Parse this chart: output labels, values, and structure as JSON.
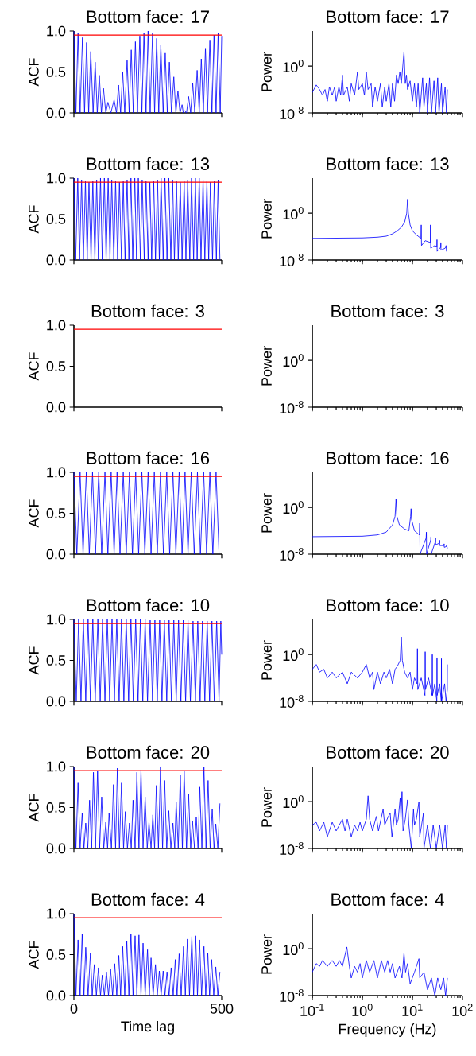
{
  "chart_data": [
    {
      "type": "line",
      "title": "Bottom face: 17",
      "ylabel": "ACF",
      "xlim": [
        0,
        500
      ],
      "ylim": [
        0,
        1
      ],
      "xticks": [
        0,
        500
      ],
      "yticks": [
        {
          "value": 0,
          "label": "0.0"
        },
        {
          "value": 0.5,
          "label": "0.5"
        },
        {
          "value": 1,
          "label": "1.0"
        }
      ],
      "tick_labels": "y",
      "ref_lines": [
        {
          "axis": "y",
          "value": 0.95,
          "color": "#ff0000"
        }
      ],
      "series": [
        {
          "color": "#0000ff",
          "x": [
            0,
            7,
            14,
            21,
            29,
            36,
            43,
            50,
            57,
            65,
            72,
            79,
            86,
            93,
            100,
            108,
            115,
            125,
            136,
            144,
            151,
            158,
            165,
            172,
            180,
            187,
            194,
            201,
            208,
            215,
            223,
            230,
            237,
            244,
            251,
            258,
            266,
            273,
            280,
            287,
            294,
            302,
            309,
            316,
            323,
            330,
            338,
            345,
            352,
            359,
            366,
            370,
            374,
            381,
            388,
            395,
            402,
            409,
            417,
            424,
            431,
            438,
            445,
            452,
            460,
            467,
            474,
            481,
            488,
            495,
            500
          ],
          "values": [
            1.0,
            0,
            0.98,
            0,
            0.92,
            0,
            0.86,
            0,
            0.75,
            0,
            0.62,
            0,
            0.46,
            0,
            0.3,
            0,
            0.13,
            0,
            0.16,
            0,
            0.34,
            0,
            0.5,
            0,
            0.64,
            0,
            0.77,
            0,
            0.87,
            0,
            0.94,
            0,
            0.98,
            0,
            1.0,
            0,
            0.97,
            0,
            0.91,
            0,
            0.83,
            0,
            0.73,
            0,
            0.62,
            0,
            0.44,
            0,
            0.27,
            0,
            0.1,
            0,
            0.03,
            0,
            0.2,
            0,
            0.36,
            0,
            0.52,
            0,
            0.66,
            0,
            0.79,
            0,
            0.89,
            0,
            0.95,
            0,
            0.98,
            0,
            0.94
          ]
        }
      ]
    },
    {
      "type": "line",
      "title": "Bottom face: 17",
      "ylabel": "Power",
      "log": "xy",
      "xlim": [
        0.1,
        100
      ],
      "ylim": [
        1e-08,
        1000000.0
      ],
      "xticks": [
        {
          "value": 0.1,
          "label": null
        },
        {
          "value": 1,
          "label": null
        },
        {
          "value": 10,
          "label": null
        },
        {
          "value": 100,
          "label": null
        }
      ],
      "yticks": [
        {
          "value": 1e-08,
          "label": "10$^{-8}$"
        },
        {
          "value": 1,
          "label": "10$^{0}$"
        }
      ],
      "tick_labels": "y",
      "series": [
        {
          "color": "#0000ff",
          "x": [
            0.1,
            0.12,
            0.14,
            0.16,
            0.18,
            0.2,
            0.22,
            0.25,
            0.28,
            0.3,
            0.34,
            0.37,
            0.4,
            0.42,
            0.5,
            0.55,
            0.6,
            0.7,
            0.8,
            0.85,
            1.0,
            1.1,
            1.2,
            1.3,
            1.5,
            1.6,
            1.8,
            2.0,
            2.3,
            2.5,
            2.8,
            3.0,
            3.4,
            3.7,
            4.0,
            4.4,
            4.8,
            5.2,
            5.6,
            6.0,
            6.8,
            7.2,
            7.6,
            8.0,
            9.0,
            10,
            11,
            12,
            13,
            14,
            16,
            17,
            19,
            20,
            22,
            24,
            27,
            29,
            32,
            34,
            38,
            40,
            45,
            48,
            50
          ],
          "values": [
            3e-05,
            0.0006,
            0.0001,
            1e-05,
            0.0001,
            1e-06,
            0.0003,
            1e-05,
            0.0003,
            1e-06,
            0.0003,
            1e-05,
            0.03,
            1e-05,
            0.0003,
            1e-06,
            0.001,
            1e-05,
            0.1,
            0.0001,
            0.001,
            1e-05,
            0.1,
            0.0001,
            0.001,
            1e-07,
            0.0003,
            1e-06,
            0.001,
            1e-07,
            0.0003,
            1e-06,
            0.001,
            1e-07,
            0.001,
            1e-06,
            0.03,
            0.001,
            0.1,
            0.001,
            300,
            0.001,
            0.03,
            0.0001,
            0.003,
            1e-06,
            0.001,
            1e-07,
            0.001,
            1e-08,
            0.01,
            1e-07,
            0.001,
            1e-08,
            0.01,
            1e-08,
            0.003,
            1e-08,
            0.01,
            1e-08,
            0.001,
            1e-08,
            0.0003,
            1e-08,
            0.0001
          ]
        }
      ]
    },
    {
      "type": "line",
      "title": "Bottom face: 13",
      "ylabel": "ACF",
      "xlim": [
        0,
        500
      ],
      "ylim": [
        0,
        1
      ],
      "xticks": [
        0,
        500
      ],
      "yticks": [
        {
          "value": 0,
          "label": "0.0"
        },
        {
          "value": 0.5,
          "label": "0.5"
        },
        {
          "value": 1,
          "label": "1.0"
        }
      ],
      "tick_labels": "y",
      "ref_lines": [
        {
          "axis": "y",
          "value": 0.95,
          "color": "#ff0000"
        }
      ],
      "series": [
        {
          "color": "#0000ff",
          "x": [
            0,
            6,
            13,
            19,
            26,
            32,
            39,
            45,
            51,
            58,
            64,
            71,
            77,
            83,
            90,
            96,
            103,
            109,
            116,
            122,
            128,
            135,
            141,
            148,
            154,
            161,
            167,
            173,
            180,
            186,
            193,
            199,
            206,
            212,
            218,
            225,
            231,
            238,
            244,
            251,
            257,
            263,
            270,
            276,
            283,
            289,
            295,
            302,
            308,
            315,
            321,
            328,
            334,
            340,
            347,
            353,
            360,
            366,
            373,
            379,
            385,
            392,
            398,
            405,
            411,
            417,
            424,
            430,
            437,
            443,
            450,
            456,
            462,
            469,
            475,
            482,
            488,
            494
          ],
          "values": [
            1.0,
            0,
            1.0,
            0,
            0.98,
            0,
            0.96,
            0,
            0.95,
            0,
            0.96,
            0,
            0.98,
            0,
            1.0,
            0,
            1.0,
            0,
            1.0,
            0,
            0.98,
            0,
            0.96,
            0,
            0.95,
            0,
            0.96,
            0,
            0.98,
            0,
            1.0,
            0,
            1.0,
            0,
            1.0,
            0,
            0.98,
            0,
            0.96,
            0,
            0.95,
            0,
            0.96,
            0,
            0.98,
            0,
            1.0,
            0,
            1.0,
            0,
            1.0,
            0,
            0.98,
            0,
            0.96,
            0,
            0.95,
            0,
            0.96,
            0,
            0.98,
            0,
            1.0,
            0,
            1.0,
            0,
            1.0,
            0,
            0.98,
            0,
            0.96,
            0,
            0.95,
            0,
            0.96,
            0,
            0.98,
            0
          ]
        }
      ]
    },
    {
      "type": "line",
      "title": "Bottom face: 13",
      "ylabel": "Power",
      "log": "xy",
      "xlim": [
        0.1,
        100
      ],
      "ylim": [
        1e-08,
        1000000.0
      ],
      "xticks": [
        {
          "value": 0.1,
          "label": null
        },
        {
          "value": 1,
          "label": null
        },
        {
          "value": 10,
          "label": null
        },
        {
          "value": 100,
          "label": null
        }
      ],
      "yticks": [
        {
          "value": 1e-08,
          "label": "10$^{-8}$"
        },
        {
          "value": 1,
          "label": "10$^{0}$"
        }
      ],
      "tick_labels": "y",
      "series": [
        {
          "color": "#0000ff",
          "x": [
            0.1,
            1,
            2,
            3,
            4,
            5,
            6,
            7,
            7.7,
            8,
            8.3,
            9,
            10,
            12,
            14.8,
            15,
            15.2,
            18,
            22.8,
            23,
            23.2,
            28,
            30.8,
            31,
            31.2,
            36.8,
            37,
            37.2,
            45,
            47,
            48,
            50
          ],
          "values": [
            5e-05,
            6e-05,
            8e-05,
            0.00012,
            0.0003,
            0.001,
            0.004,
            0.03,
            1,
            250,
            1,
            0.01,
            0.001,
            0.0002,
            5e-05,
            0.01,
            3e-06,
            2e-05,
            1e-05,
            0.01,
            1e-06,
            3e-06,
            2e-06,
            3e-05,
            3e-07,
            1.5e-06,
            1e-05,
            5e-07,
            1e-06,
            3e-06,
            3e-07,
            5e-07
          ]
        }
      ]
    },
    {
      "type": "line",
      "title": "Bottom face: 3",
      "ylabel": "ACF",
      "xlim": [
        0,
        500
      ],
      "ylim": [
        0,
        1
      ],
      "xticks": [
        0,
        500
      ],
      "yticks": [
        {
          "value": 0,
          "label": "0.0"
        },
        {
          "value": 0.5,
          "label": "0.5"
        },
        {
          "value": 1,
          "label": "1.0"
        }
      ],
      "tick_labels": "y",
      "ref_lines": [
        {
          "axis": "y",
          "value": 0.95,
          "color": "#ff0000"
        }
      ]
    },
    {
      "type": "line",
      "title": "Bottom face: 3",
      "ylabel": "Power",
      "log": "xy",
      "xlim": [
        0.1,
        100
      ],
      "ylim": [
        1e-08,
        1000000.0
      ],
      "xticks": [
        {
          "value": 0.1,
          "label": null
        },
        {
          "value": 1,
          "label": null
        },
        {
          "value": 10,
          "label": null
        },
        {
          "value": 100,
          "label": null
        }
      ],
      "yticks": [
        {
          "value": 1e-08,
          "label": "10$^{-8}$"
        },
        {
          "value": 1,
          "label": "10$^{0}$"
        }
      ],
      "tick_labels": "y"
    },
    {
      "type": "line",
      "title": "Bottom face: 16",
      "ylabel": "ACF",
      "xlim": [
        0,
        500
      ],
      "ylim": [
        0,
        1
      ],
      "xticks": [
        0,
        500
      ],
      "yticks": [
        {
          "value": 0,
          "label": "0.0"
        },
        {
          "value": 0.5,
          "label": "0.5"
        },
        {
          "value": 1,
          "label": "1.0"
        }
      ],
      "tick_labels": "y",
      "ref_lines": [
        {
          "axis": "y",
          "value": 0.95,
          "color": "#ff0000"
        }
      ],
      "series": [
        {
          "color": "#0000ff",
          "x": [
            0,
            10,
            21,
            31,
            42,
            52,
            63,
            73,
            84,
            94,
            105,
            115,
            126,
            136,
            146,
            156,
            167,
            177,
            188,
            198,
            209,
            219,
            230,
            240,
            251,
            261,
            272,
            282,
            293,
            303,
            314,
            324,
            335,
            345,
            356,
            366,
            376,
            386,
            397,
            407,
            418,
            428,
            439,
            449,
            460,
            470,
            481,
            491
          ],
          "values": [
            1.0,
            0,
            1.0,
            0,
            1.0,
            0,
            1.0,
            0,
            1.0,
            0,
            1.0,
            0,
            1.0,
            0,
            1.0,
            0,
            1.0,
            0,
            1.0,
            0,
            1.0,
            0,
            1.0,
            0,
            1.0,
            0,
            1.0,
            0,
            1.0,
            0,
            1.0,
            0,
            1.0,
            0,
            1.0,
            0,
            1.0,
            0,
            1.0,
            0,
            1.0,
            0,
            1.0,
            0,
            1.0,
            0,
            1.0,
            0
          ]
        }
      ]
    },
    {
      "type": "line",
      "title": "Bottom face: 16",
      "ylabel": "Power",
      "log": "xy",
      "xlim": [
        0.1,
        100
      ],
      "ylim": [
        1e-08,
        1000000.0
      ],
      "xticks": [
        {
          "value": 0.1,
          "label": null
        },
        {
          "value": 1,
          "label": null
        },
        {
          "value": 10,
          "label": null
        },
        {
          "value": 100,
          "label": null
        }
      ],
      "yticks": [
        {
          "value": 1e-08,
          "label": "10$^{-8}$"
        },
        {
          "value": 1,
          "label": "10$^{0}$"
        }
      ],
      "tick_labels": "y",
      "series": [
        {
          "color": "#0000ff",
          "x": [
            0.1,
            1,
            2,
            3,
            4,
            4.5,
            4.7,
            4.9,
            5.5,
            7,
            8.5,
            9.2,
            9.4,
            9.6,
            11,
            13.8,
            14,
            14.2,
            18.8,
            19,
            19.2,
            23.3,
            23.5,
            23.7,
            28.8,
            29,
            29.2,
            34.8,
            35,
            35.2,
            42.8,
            43,
            43.2,
            47.8,
            48,
            50
          ],
          "values": [
            1e-05,
            1.2e-05,
            2e-05,
            6e-05,
            0.001,
            0.03,
            25,
            0.03,
            0.001,
            0.0002,
            0.0001,
            0.03,
            0.6,
            0.01,
            0.0001,
            2e-05,
            0.002,
            1e-08,
            6e-06,
            6e-05,
            1e-08,
            3e-06,
            1e-05,
            1e-08,
            1.5e-06,
            6e-06,
            4e-07,
            8e-07,
            2.5e-06,
            3e-07,
            3e-07,
            6e-07,
            1.5e-07,
            2e-07,
            4e-07,
            1e-07
          ]
        }
      ]
    },
    {
      "type": "line",
      "title": "Bottom face: 10",
      "ylabel": "ACF",
      "xlim": [
        0,
        500
      ],
      "ylim": [
        0,
        1
      ],
      "xticks": [
        0,
        500
      ],
      "yticks": [
        {
          "value": 0,
          "label": "0.0"
        },
        {
          "value": 0.5,
          "label": "0.5"
        },
        {
          "value": 1,
          "label": "1.0"
        }
      ],
      "tick_labels": "y",
      "ref_lines": [
        {
          "axis": "y",
          "value": 0.95,
          "color": "#ff0000"
        }
      ],
      "series": [
        {
          "color": "#0000ff",
          "x": [
            0,
            8,
            16,
            24,
            32,
            40,
            48,
            56,
            64,
            72,
            81,
            89,
            97,
            105,
            113,
            121,
            129,
            137,
            145,
            153,
            161,
            169,
            177,
            185,
            193,
            201,
            209,
            217,
            225,
            233,
            241,
            249,
            258,
            266,
            274,
            282,
            290,
            298,
            306,
            314,
            322,
            330,
            338,
            346,
            354,
            362,
            370,
            378,
            386,
            394,
            403,
            411,
            419,
            427,
            435,
            443,
            451,
            459,
            467,
            475,
            483,
            491,
            497,
            500
          ],
          "values": [
            1.0,
            0,
            1.0,
            0,
            1.0,
            0,
            1.0,
            0,
            1.0,
            0,
            1.0,
            0,
            1.0,
            0,
            1.0,
            0,
            1.0,
            0,
            1.0,
            0,
            1.0,
            0,
            1.0,
            0,
            1.0,
            0,
            1.0,
            0,
            1.0,
            0,
            1.0,
            0,
            0.99,
            0,
            0.99,
            0,
            0.99,
            0,
            0.99,
            0,
            0.99,
            0,
            0.99,
            0,
            0.99,
            0,
            0.99,
            0,
            0.99,
            0,
            0.98,
            0,
            0.98,
            0,
            0.98,
            0,
            0.98,
            0,
            0.98,
            0,
            0.98,
            0,
            0.98,
            0.57
          ]
        }
      ]
    },
    {
      "type": "line",
      "title": "Bottom face: 10",
      "ylabel": "Power",
      "log": "xy",
      "xlim": [
        0.1,
        100
      ],
      "ylim": [
        1e-08,
        1000000.0
      ],
      "xticks": [
        {
          "value": 0.1,
          "label": null
        },
        {
          "value": 1,
          "label": null
        },
        {
          "value": 10,
          "label": null
        },
        {
          "value": 100,
          "label": null
        }
      ],
      "yticks": [
        {
          "value": 1e-08,
          "label": "10$^{-8}$"
        },
        {
          "value": 1,
          "label": "10$^{0}$"
        }
      ],
      "tick_labels": "y",
      "series": [
        {
          "color": "#0000ff",
          "x": [
            0.1,
            0.12,
            0.14,
            0.17,
            0.2,
            0.25,
            0.3,
            0.4,
            0.5,
            0.6,
            0.8,
            1.0,
            1.2,
            1.4,
            1.6,
            1.7,
            2.0,
            2.3,
            2.7,
            3.0,
            3.5,
            4.0,
            4.5,
            5.0,
            5.7,
            6.0,
            6.3,
            7,
            8,
            9,
            10,
            11,
            12.4,
            12.6,
            12.8,
            15,
            17.8,
            18,
            18.2,
            21,
            24.8,
            25,
            25.2,
            28,
            30.8,
            31,
            31.2,
            35,
            37.8,
            38,
            38.2,
            44,
            47,
            49.8,
            50
          ],
          "values": [
            0.003,
            0.02,
            0.001,
            0.003,
            0.0001,
            0.001,
            0.0001,
            0.001,
            1e-05,
            0.001,
            0.0001,
            0.001,
            0.02,
            0.0001,
            0.001,
            1e-06,
            0.001,
            1e-05,
            0.001,
            0.0001,
            0.003,
            1e-05,
            0.003,
            0.01,
            0.1,
            1000,
            0.1,
            0.001,
            0.0001,
            0.001,
            1e-06,
            0.0001,
            1e-05,
            10,
            1e-06,
            0.0001,
            1e-07,
            3,
            1e-06,
            0.0001,
            1e-07,
            1,
            1e-07,
            1e-05,
            1e-08,
            0.3,
            1e-07,
            1e-05,
            1e-08,
            0.2,
            1e-08,
            1e-05,
            1e-08,
            1e-06,
            0.02
          ]
        }
      ]
    },
    {
      "type": "line",
      "title": "Bottom face: 20",
      "ylabel": "ACF",
      "xlim": [
        0,
        500
      ],
      "ylim": [
        0,
        1
      ],
      "xticks": [
        0,
        500
      ],
      "yticks": [
        {
          "value": 0,
          "label": "0.0"
        },
        {
          "value": 0.5,
          "label": "0.5"
        },
        {
          "value": 1,
          "label": "1.0"
        }
      ],
      "tick_labels": "y",
      "ref_lines": [
        {
          "axis": "y",
          "value": 0.95,
          "color": "#ff0000"
        }
      ],
      "series": [
        {
          "color": "#0000ff",
          "x": [
            0,
            7,
            14,
            21,
            28,
            34,
            40,
            47,
            53,
            60,
            66,
            73,
            80,
            87,
            94,
            101,
            108,
            114,
            119,
            127,
            134,
            141,
            147,
            154,
            161,
            168,
            174,
            181,
            188,
            194,
            200,
            207,
            213,
            220,
            227,
            234,
            241,
            248,
            254,
            261,
            267,
            273,
            279,
            286,
            293,
            300,
            307,
            314,
            321,
            328,
            335,
            341,
            346,
            353,
            360,
            367,
            373,
            381,
            388,
            395,
            401,
            408,
            414,
            420,
            426,
            433,
            440,
            447,
            454,
            461,
            468,
            474,
            480,
            487,
            494
          ],
          "values": [
            1.0,
            0,
            0.8,
            0,
            0.43,
            0,
            0.31,
            0,
            0.59,
            0,
            0.93,
            0,
            0.95,
            0,
            0.63,
            0,
            0.32,
            0,
            0.43,
            0,
            0.78,
            0,
            0.98,
            0,
            0.8,
            0,
            0.45,
            0,
            0.31,
            0,
            0.59,
            0,
            0.93,
            0,
            0.96,
            0,
            0.63,
            0,
            0.32,
            0,
            0.41,
            0,
            0.77,
            0,
            1.0,
            0,
            0.83,
            0,
            0.46,
            0,
            0.31,
            0,
            0.57,
            0,
            0.9,
            0,
            0.95,
            0,
            0.66,
            0,
            0.34,
            0,
            0.38,
            0,
            0.75,
            0,
            0.99,
            0,
            0.83,
            0,
            0.48,
            0,
            0.3,
            0,
            0.55
          ]
        }
      ]
    },
    {
      "type": "line",
      "title": "Bottom face: 20",
      "ylabel": "Power",
      "log": "xy",
      "xlim": [
        0.1,
        100
      ],
      "ylim": [
        1e-08,
        1000000.0
      ],
      "xticks": [
        {
          "value": 0.1,
          "label": null
        },
        {
          "value": 1,
          "label": null
        },
        {
          "value": 10,
          "label": null
        },
        {
          "value": 100,
          "label": null
        }
      ],
      "yticks": [
        {
          "value": 1e-08,
          "label": "10$^{-8}$"
        },
        {
          "value": 1,
          "label": "10$^{0}$"
        }
      ],
      "tick_labels": "y",
      "series": [
        {
          "color": "#0000ff",
          "x": [
            0.1,
            0.12,
            0.14,
            0.17,
            0.2,
            0.25,
            0.3,
            0.4,
            0.45,
            0.5,
            0.6,
            0.7,
            0.8,
            0.9,
            1.0,
            1.2,
            1.3,
            1.4,
            1.6,
            1.9,
            2.1,
            2.6,
            2.8,
            3.3,
            3.6,
            3.9,
            4.5,
            4.8,
            5.2,
            5.7,
            5.9,
            6.2,
            6.5,
            7.2,
            8.0,
            8.5,
            9.5,
            10.5,
            11,
            12,
            13.5,
            14,
            16.6,
            17,
            20,
            23,
            26,
            30,
            35,
            40,
            45,
            48,
            50
          ],
          "values": [
            0.0001,
            0.0003,
            1e-05,
            0.0003,
            1e-06,
            0.0003,
            1e-05,
            0.001,
            1e-05,
            0.001,
            1e-06,
            0.0001,
            1e-05,
            0.0003,
            1e-05,
            0.001,
            10,
            0.001,
            1e-05,
            0.003,
            1e-05,
            0.05,
            0.0001,
            0.003,
            0.01,
            1e-06,
            0.05,
            0.0001,
            0.001,
            5,
            0.001,
            50,
            1e-05,
            0.001,
            2,
            0.0001,
            1e-08,
            0.05,
            0.0001,
            0.001,
            1,
            1e-06,
            0.01,
            1e-08,
            0.0001,
            1e-08,
            0.0001,
            1e-08,
            0.0001,
            1e-08,
            0.0001,
            1e-08,
            0.0001
          ]
        }
      ]
    },
    {
      "type": "line",
      "title": "Bottom face: 4",
      "ylabel": "ACF",
      "xlabel": "Time lag",
      "xlim": [
        0,
        500
      ],
      "ylim": [
        0,
        1
      ],
      "xticks": [
        0,
        500
      ],
      "yticks": [
        {
          "value": 0,
          "label": "0.0"
        },
        {
          "value": 0.5,
          "label": "0.5"
        },
        {
          "value": 1,
          "label": "1.0"
        }
      ],
      "ref_lines": [
        {
          "axis": "y",
          "value": 0.95,
          "color": "#ff0000"
        }
      ],
      "series": [
        {
          "color": "#0000ff",
          "x": [
            0,
            7,
            14,
            21,
            28,
            34,
            40,
            48,
            56,
            62,
            69,
            76,
            83,
            90,
            96,
            103,
            110,
            117,
            124,
            131,
            138,
            145,
            152,
            158,
            165,
            172,
            179,
            186,
            193,
            200,
            207,
            213,
            220,
            227,
            234,
            241,
            249,
            255,
            261,
            268,
            276,
            282,
            289,
            295,
            302,
            308,
            315,
            322,
            329,
            336,
            343,
            349,
            356,
            363,
            371,
            377,
            384,
            391,
            399,
            405,
            412,
            418,
            425,
            432,
            440,
            446,
            453,
            459,
            466,
            473,
            480,
            487,
            494
          ],
          "values": [
            1.0,
            0,
            0.68,
            0,
            0.75,
            0,
            0.59,
            0,
            0.52,
            0,
            0.38,
            0,
            0.34,
            0,
            0.25,
            0,
            0.29,
            0,
            0.32,
            0,
            0.39,
            0,
            0.49,
            0,
            0.6,
            0,
            0.66,
            0,
            0.75,
            0,
            0.73,
            0,
            0.74,
            0,
            0.64,
            0,
            0.56,
            0,
            0.46,
            0,
            0.38,
            0,
            0.3,
            0,
            0.3,
            0,
            0.29,
            0,
            0.34,
            0,
            0.44,
            0,
            0.51,
            0,
            0.6,
            0,
            0.69,
            0,
            0.72,
            0,
            0.73,
            0,
            0.68,
            0,
            0.6,
            0,
            0.52,
            0,
            0.44,
            0,
            0.35,
            0,
            0.29
          ]
        }
      ]
    },
    {
      "type": "line",
      "title": "Bottom face: 4",
      "ylabel": "Power",
      "xlabel": "Frequency (Hz)",
      "log": "xy",
      "xlim": [
        0.1,
        100
      ],
      "ylim": [
        1e-08,
        1000000.0
      ],
      "xticks": [
        {
          "value": 0.1,
          "label": "10$^{-1}$"
        },
        {
          "value": 1,
          "label": "10$^{0}$"
        },
        {
          "value": 10,
          "label": "10$^{1}$"
        },
        {
          "value": 100,
          "label": "10$^{2}$"
        }
      ],
      "yticks": [
        {
          "value": 1e-08,
          "label": "10$^{-8}$"
        },
        {
          "value": 1,
          "label": "10$^{0}$"
        }
      ],
      "series": [
        {
          "color": "#0000ff",
          "x": [
            0.1,
            0.12,
            0.14,
            0.16,
            0.2,
            0.25,
            0.3,
            0.35,
            0.4,
            0.49,
            0.55,
            0.6,
            0.7,
            0.8,
            0.9,
            1.0,
            1.2,
            1.4,
            1.7,
            2.0,
            2.4,
            2.8,
            3.2,
            3.6,
            4.0,
            4.5,
            5.5,
            6.2,
            6.8,
            7.3,
            8.0,
            9,
            11,
            13.5,
            14,
            17,
            20,
            24,
            28,
            32,
            37,
            42,
            46,
            50
          ],
          "values": [
            0.0001,
            0.003,
            0.001,
            0.01,
            0.001,
            0.01,
            0.001,
            0.01,
            0.001,
            2,
            0.001,
            1e-05,
            0.001,
            0.0001,
            0.003,
            1e-05,
            0.01,
            0.0001,
            0.01,
            1e-05,
            0.01,
            0.0001,
            0.01,
            0.0001,
            0.003,
            1e-05,
            0.001,
            1e-05,
            0.2,
            0.0001,
            0.003,
            1e-06,
            0.0001,
            0.02,
            1e-05,
            0.0001,
            1e-07,
            1e-05,
            1e-08,
            1e-05,
            1e-07,
            1e-05,
            1e-08,
            1e-05
          ]
        }
      ]
    }
  ]
}
